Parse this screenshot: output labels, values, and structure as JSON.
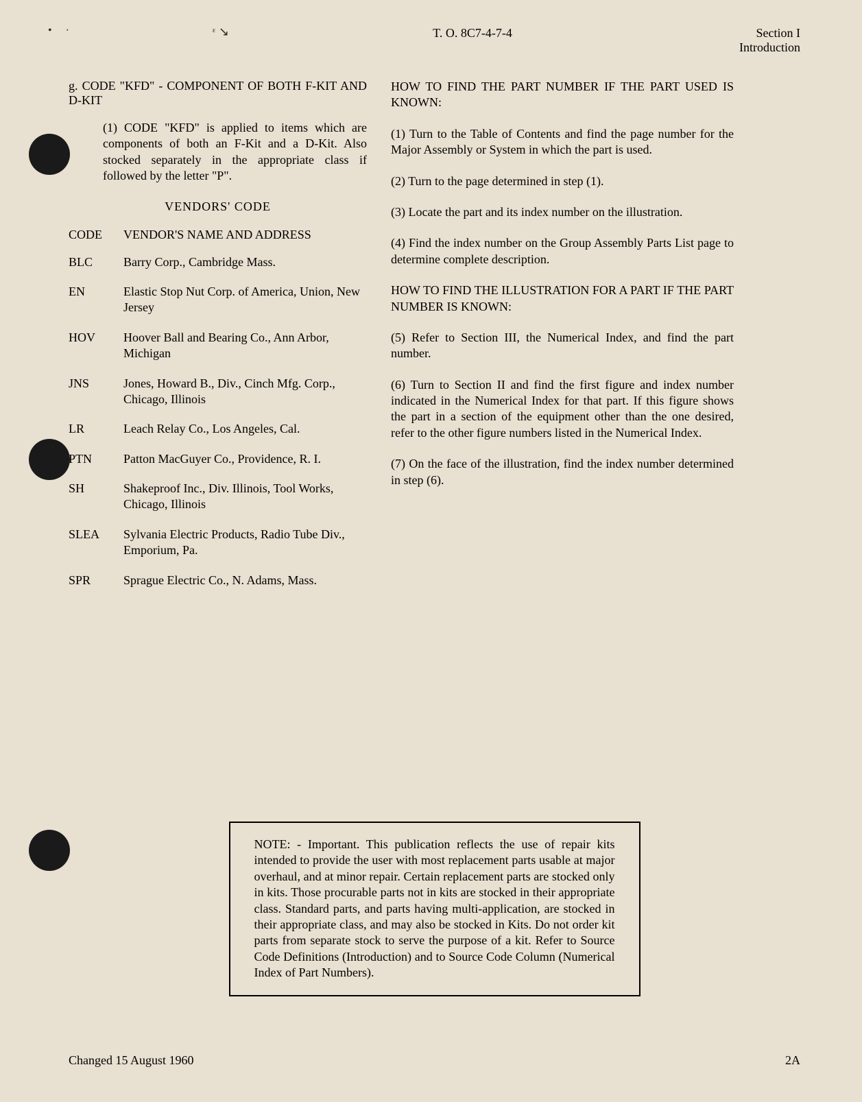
{
  "header": {
    "doc_number": "T. O. 8C7-4-7-4",
    "section": "Section I",
    "subsection": "Introduction"
  },
  "section_g": {
    "label": "g.",
    "title": "CODE \"KFD\" - COMPONENT OF BOTH F-KIT AND D-KIT",
    "sub_num": "(1)",
    "sub_text": "CODE \"KFD\" is applied to items which are components of both an F-Kit and a D-Kit. Also stocked separately in the appropriate class if followed by the letter \"P\"."
  },
  "vendors": {
    "title": "VENDORS' CODE",
    "code_header": "CODE",
    "name_header": "VENDOR'S NAME AND ADDRESS",
    "items": [
      {
        "code": "BLC",
        "name": "Barry Corp., Cambridge Mass."
      },
      {
        "code": "EN",
        "name": "Elastic Stop Nut Corp. of America, Union, New Jersey"
      },
      {
        "code": "HOV",
        "name": "Hoover Ball and Bearing Co., Ann Arbor, Michigan"
      },
      {
        "code": "JNS",
        "name": "Jones, Howard B., Div., Cinch Mfg. Corp., Chicago, Illinois"
      },
      {
        "code": "LR",
        "name": "Leach Relay Co., Los Angeles, Cal."
      },
      {
        "code": "PTN",
        "name": "Patton MacGuyer Co., Providence, R. I."
      },
      {
        "code": "SH",
        "name": "Shakeproof Inc., Div. Illinois, Tool Works, Chicago, Illinois"
      },
      {
        "code": "SLEA",
        "name": "Sylvania Electric Products, Radio Tube Div., Emporium, Pa."
      },
      {
        "code": "SPR",
        "name": "Sprague Electric Co., N. Adams, Mass."
      }
    ]
  },
  "right": {
    "title1": "HOW TO FIND THE PART NUMBER IF THE PART USED IS KNOWN:",
    "step1": "(1) Turn to the Table of Contents and find the page number for the Major Assembly or System in which the part is used.",
    "step2": "(2) Turn to the page determined in step (1).",
    "step3": "(3) Locate the part and its index number on the illustration.",
    "step4": "(4) Find the index number on the Group Assembly Parts List page to determine complete description.",
    "title2": "HOW TO FIND THE ILLUSTRATION FOR A PART IF THE PART NUMBER IS KNOWN:",
    "step5": "(5) Refer to Section III, the Numerical Index, and find the part number.",
    "step6": "(6) Turn to Section II and find the first figure and index number indicated in the Numerical Index for that part. If this figure shows the part in a section of the equipment other than the one desired, refer to the other figure numbers listed in the Numerical Index.",
    "step7": "(7) On the face of the illustration, find the index number determined in step (6)."
  },
  "note": {
    "text": "NOTE: - Important. This publication reflects the use of repair kits intended to provide the user with most replacement parts usable at major overhaul, and at minor repair. Certain replacement parts are stocked only in kits. Those procurable parts not in kits are stocked in their appropriate class. Standard parts, and parts having multi-application, are stocked in their appropriate class, and may also be stocked in Kits. Do not order kit parts from separate stock to serve the purpose of a kit. Refer to Source Code Definitions (Introduction) and to Source Code Column (Numerical Index of Part Numbers)."
  },
  "footer": {
    "changed": "Changed 15 August 1960",
    "page": "2A"
  },
  "marks": {
    "m1": "• ·",
    "m2": "ᵋ      ↘"
  }
}
